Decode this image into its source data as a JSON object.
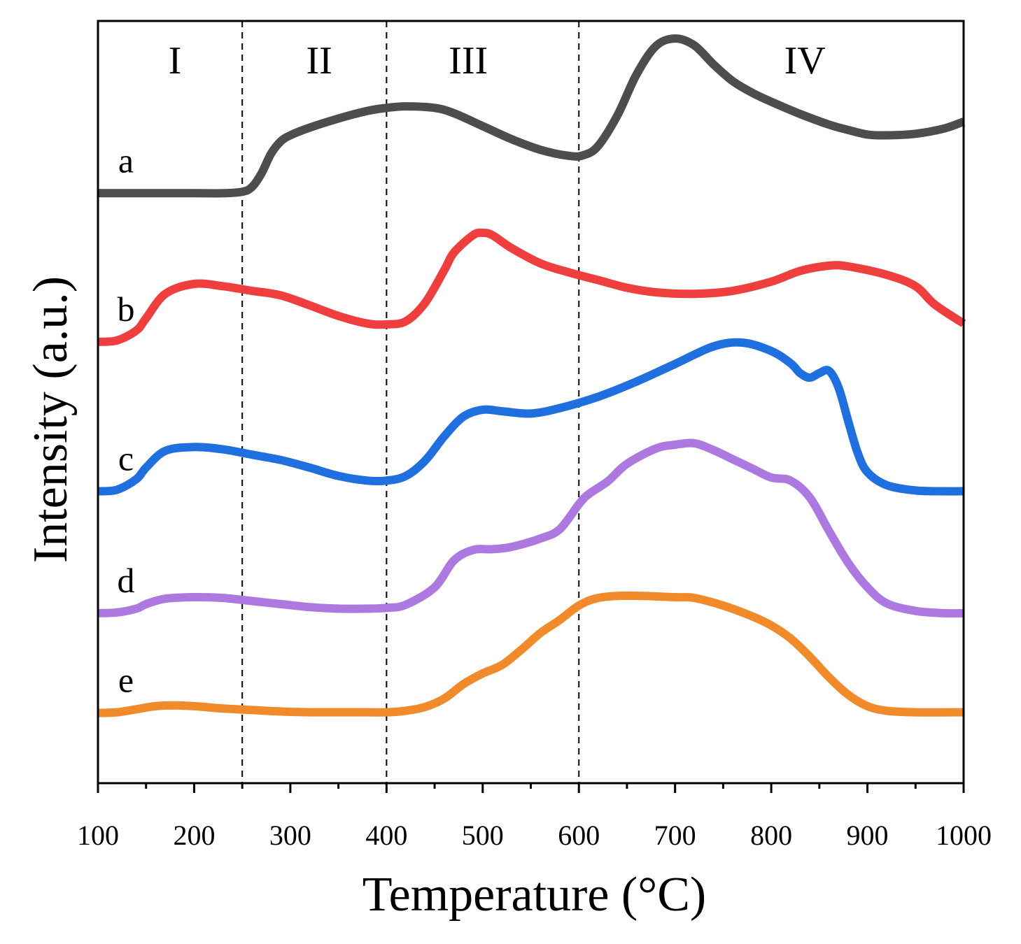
{
  "chart_data": {
    "type": "line",
    "xlabel": "Temperature (°C)",
    "ylabel": "Intensity (a.u.)",
    "xlim": [
      100,
      1000
    ],
    "ylim": [
      0,
      100
    ],
    "xticks": [
      100,
      200,
      300,
      400,
      500,
      600,
      700,
      800,
      900,
      1000
    ],
    "minor_tick_step": 50,
    "y_tick_labels": false,
    "grid": false,
    "legend": "none",
    "regions": {
      "boundaries": [
        250,
        400,
        600
      ],
      "labels": [
        {
          "text": "I",
          "x": 180
        },
        {
          "text": "II",
          "x": 330
        },
        {
          "text": "III",
          "x": 485
        },
        {
          "text": "IV",
          "x": 835
        }
      ]
    },
    "series": [
      {
        "name": "a",
        "color": "#4d4d4d",
        "x": [
          100,
          150,
          200,
          230,
          250,
          260,
          270,
          280,
          290,
          300,
          320,
          350,
          380,
          400,
          420,
          450,
          470,
          500,
          530,
          560,
          590,
          605,
          620,
          640,
          660,
          680,
          700,
          720,
          740,
          760,
          780,
          800,
          830,
          860,
          880,
          900,
          920,
          950,
          980,
          1000
        ],
        "y": [
          77.4,
          77.4,
          77.4,
          77.4,
          77.6,
          78.2,
          80,
          82.6,
          84.2,
          85,
          86,
          87.2,
          88.2,
          88.6,
          88.8,
          88.6,
          87.9,
          86.2,
          84.5,
          83.1,
          82.3,
          82.4,
          83.6,
          87.6,
          93,
          96.7,
          97.7,
          96.8,
          94.3,
          92.1,
          90.6,
          89.4,
          87.8,
          86.4,
          85.7,
          85.1,
          85,
          85.2,
          85.9,
          86.8
        ]
      },
      {
        "name": "b",
        "color": "#ef3e3e",
        "x": [
          100,
          120,
          140,
          150,
          170,
          200,
          230,
          260,
          290,
          320,
          350,
          380,
          400,
          420,
          440,
          460,
          470,
          490,
          500,
          510,
          530,
          560,
          590,
          620,
          650,
          680,
          720,
          760,
          800,
          830,
          860,
          880,
          920,
          950,
          970,
          1000
        ],
        "y": [
          57.9,
          58.1,
          59.4,
          61,
          64.2,
          65.5,
          65.2,
          64.6,
          64,
          62.7,
          61.3,
          60.3,
          60.2,
          60.6,
          63,
          67.3,
          69.6,
          71.9,
          72.2,
          71.9,
          70.2,
          68.2,
          67,
          66,
          65,
          64.4,
          64.2,
          64.6,
          65.8,
          67.2,
          67.9,
          67.8,
          66.7,
          65.2,
          62.8,
          60.3
        ]
      },
      {
        "name": "c",
        "color": "#1f6fde",
        "x": [
          100,
          120,
          140,
          150,
          170,
          200,
          230,
          260,
          290,
          320,
          350,
          380,
          400,
          420,
          440,
          460,
          480,
          500,
          520,
          550,
          580,
          620,
          660,
          700,
          740,
          770,
          800,
          820,
          830,
          840,
          850,
          860,
          870,
          880,
          890,
          900,
          920,
          950,
          980,
          1000
        ],
        "y": [
          38.3,
          38.5,
          39.9,
          41.4,
          43.6,
          44.1,
          43.8,
          43.1,
          42.4,
          41.4,
          40.3,
          39.7,
          39.7,
          40.3,
          42.3,
          45.5,
          48.1,
          49,
          48.8,
          48.5,
          49.2,
          50.7,
          52.7,
          55,
          57.3,
          57.8,
          56.7,
          55.1,
          53.8,
          53.2,
          53.8,
          54.1,
          51.9,
          47.5,
          43.3,
          40.8,
          39.1,
          38.4,
          38.3,
          38.3
        ]
      },
      {
        "name": "d",
        "color": "#ad78e0",
        "x": [
          100,
          120,
          140,
          150,
          170,
          200,
          230,
          260,
          290,
          320,
          350,
          380,
          400,
          420,
          450,
          470,
          490,
          510,
          530,
          560,
          580,
          600,
          610,
          630,
          650,
          680,
          700,
          720,
          740,
          760,
          780,
          800,
          820,
          840,
          860,
          880,
          900,
          920,
          950,
          980,
          1000
        ],
        "y": [
          22.3,
          22.4,
          22.9,
          23.5,
          24.2,
          24.4,
          24.3,
          23.9,
          23.5,
          23.1,
          22.9,
          22.9,
          23,
          23.4,
          25.7,
          29.2,
          30.6,
          30.7,
          31,
          32.1,
          33.3,
          36.6,
          37.9,
          39.6,
          41.9,
          43.9,
          44.4,
          44.6,
          43.7,
          42.5,
          41.3,
          40.1,
          39.7,
          37.5,
          33.1,
          28.9,
          25.7,
          23.6,
          22.6,
          22.3,
          22.3
        ]
      },
      {
        "name": "e",
        "color": "#f08a2a",
        "x": [
          100,
          120,
          140,
          160,
          180,
          200,
          230,
          260,
          290,
          320,
          350,
          380,
          400,
          420,
          440,
          460,
          480,
          500,
          520,
          540,
          560,
          580,
          600,
          620,
          650,
          700,
          720,
          750,
          780,
          800,
          820,
          840,
          860,
          880,
          900,
          920,
          950,
          1000
        ],
        "y": [
          9.2,
          9.3,
          9.7,
          10.1,
          10.2,
          10.1,
          9.8,
          9.6,
          9.4,
          9.3,
          9.3,
          9.3,
          9.3,
          9.5,
          10,
          11.1,
          13,
          14.4,
          15.5,
          17.5,
          19.7,
          21.4,
          23.3,
          24.3,
          24.6,
          24.4,
          24.3,
          23.3,
          21.9,
          20.7,
          19,
          16.6,
          13.9,
          11.6,
          10.1,
          9.5,
          9.3,
          9.3
        ]
      }
    ]
  }
}
